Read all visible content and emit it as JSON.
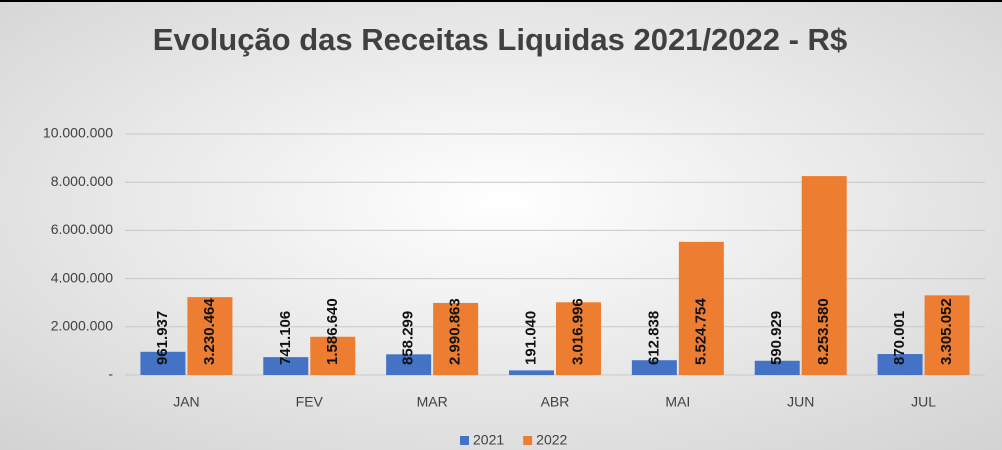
{
  "chart_data": {
    "type": "bar",
    "title": "Evolução das Receitas Liquidas 2021/2022 - R$",
    "categories": [
      "JAN",
      "FEV",
      "MAR",
      "ABR",
      "MAI",
      "JUN",
      "JUL"
    ],
    "series": [
      {
        "name": "2021",
        "color": "#4472c4",
        "values": [
          961937,
          741106,
          858299,
          191040,
          612838,
          590929,
          870001
        ],
        "value_labels": [
          "961.937",
          "741.106",
          "858.299",
          "191.040",
          "612.838",
          "590.929",
          "870.001"
        ]
      },
      {
        "name": "2022",
        "color": "#ed7d31",
        "values": [
          3230464,
          1586640,
          2990863,
          3016996,
          5524754,
          8253580,
          3305052
        ],
        "value_labels": [
          "3.230.464",
          "1.586.640",
          "2.990.863",
          "3.016.996",
          "5.524.754",
          "8.253.580",
          "3.305.052"
        ]
      }
    ],
    "ylim": [
      0,
      10000000
    ],
    "yticks": [
      {
        "value": 0,
        "label": "-"
      },
      {
        "value": 2000000,
        "label": "2.000.000"
      },
      {
        "value": 4000000,
        "label": "4.000.000"
      },
      {
        "value": 6000000,
        "label": "6.000.000"
      },
      {
        "value": 8000000,
        "label": "8.000.000"
      },
      {
        "value": 10000000,
        "label": "10.000.000"
      }
    ],
    "grid": true,
    "legend": "bottom"
  }
}
